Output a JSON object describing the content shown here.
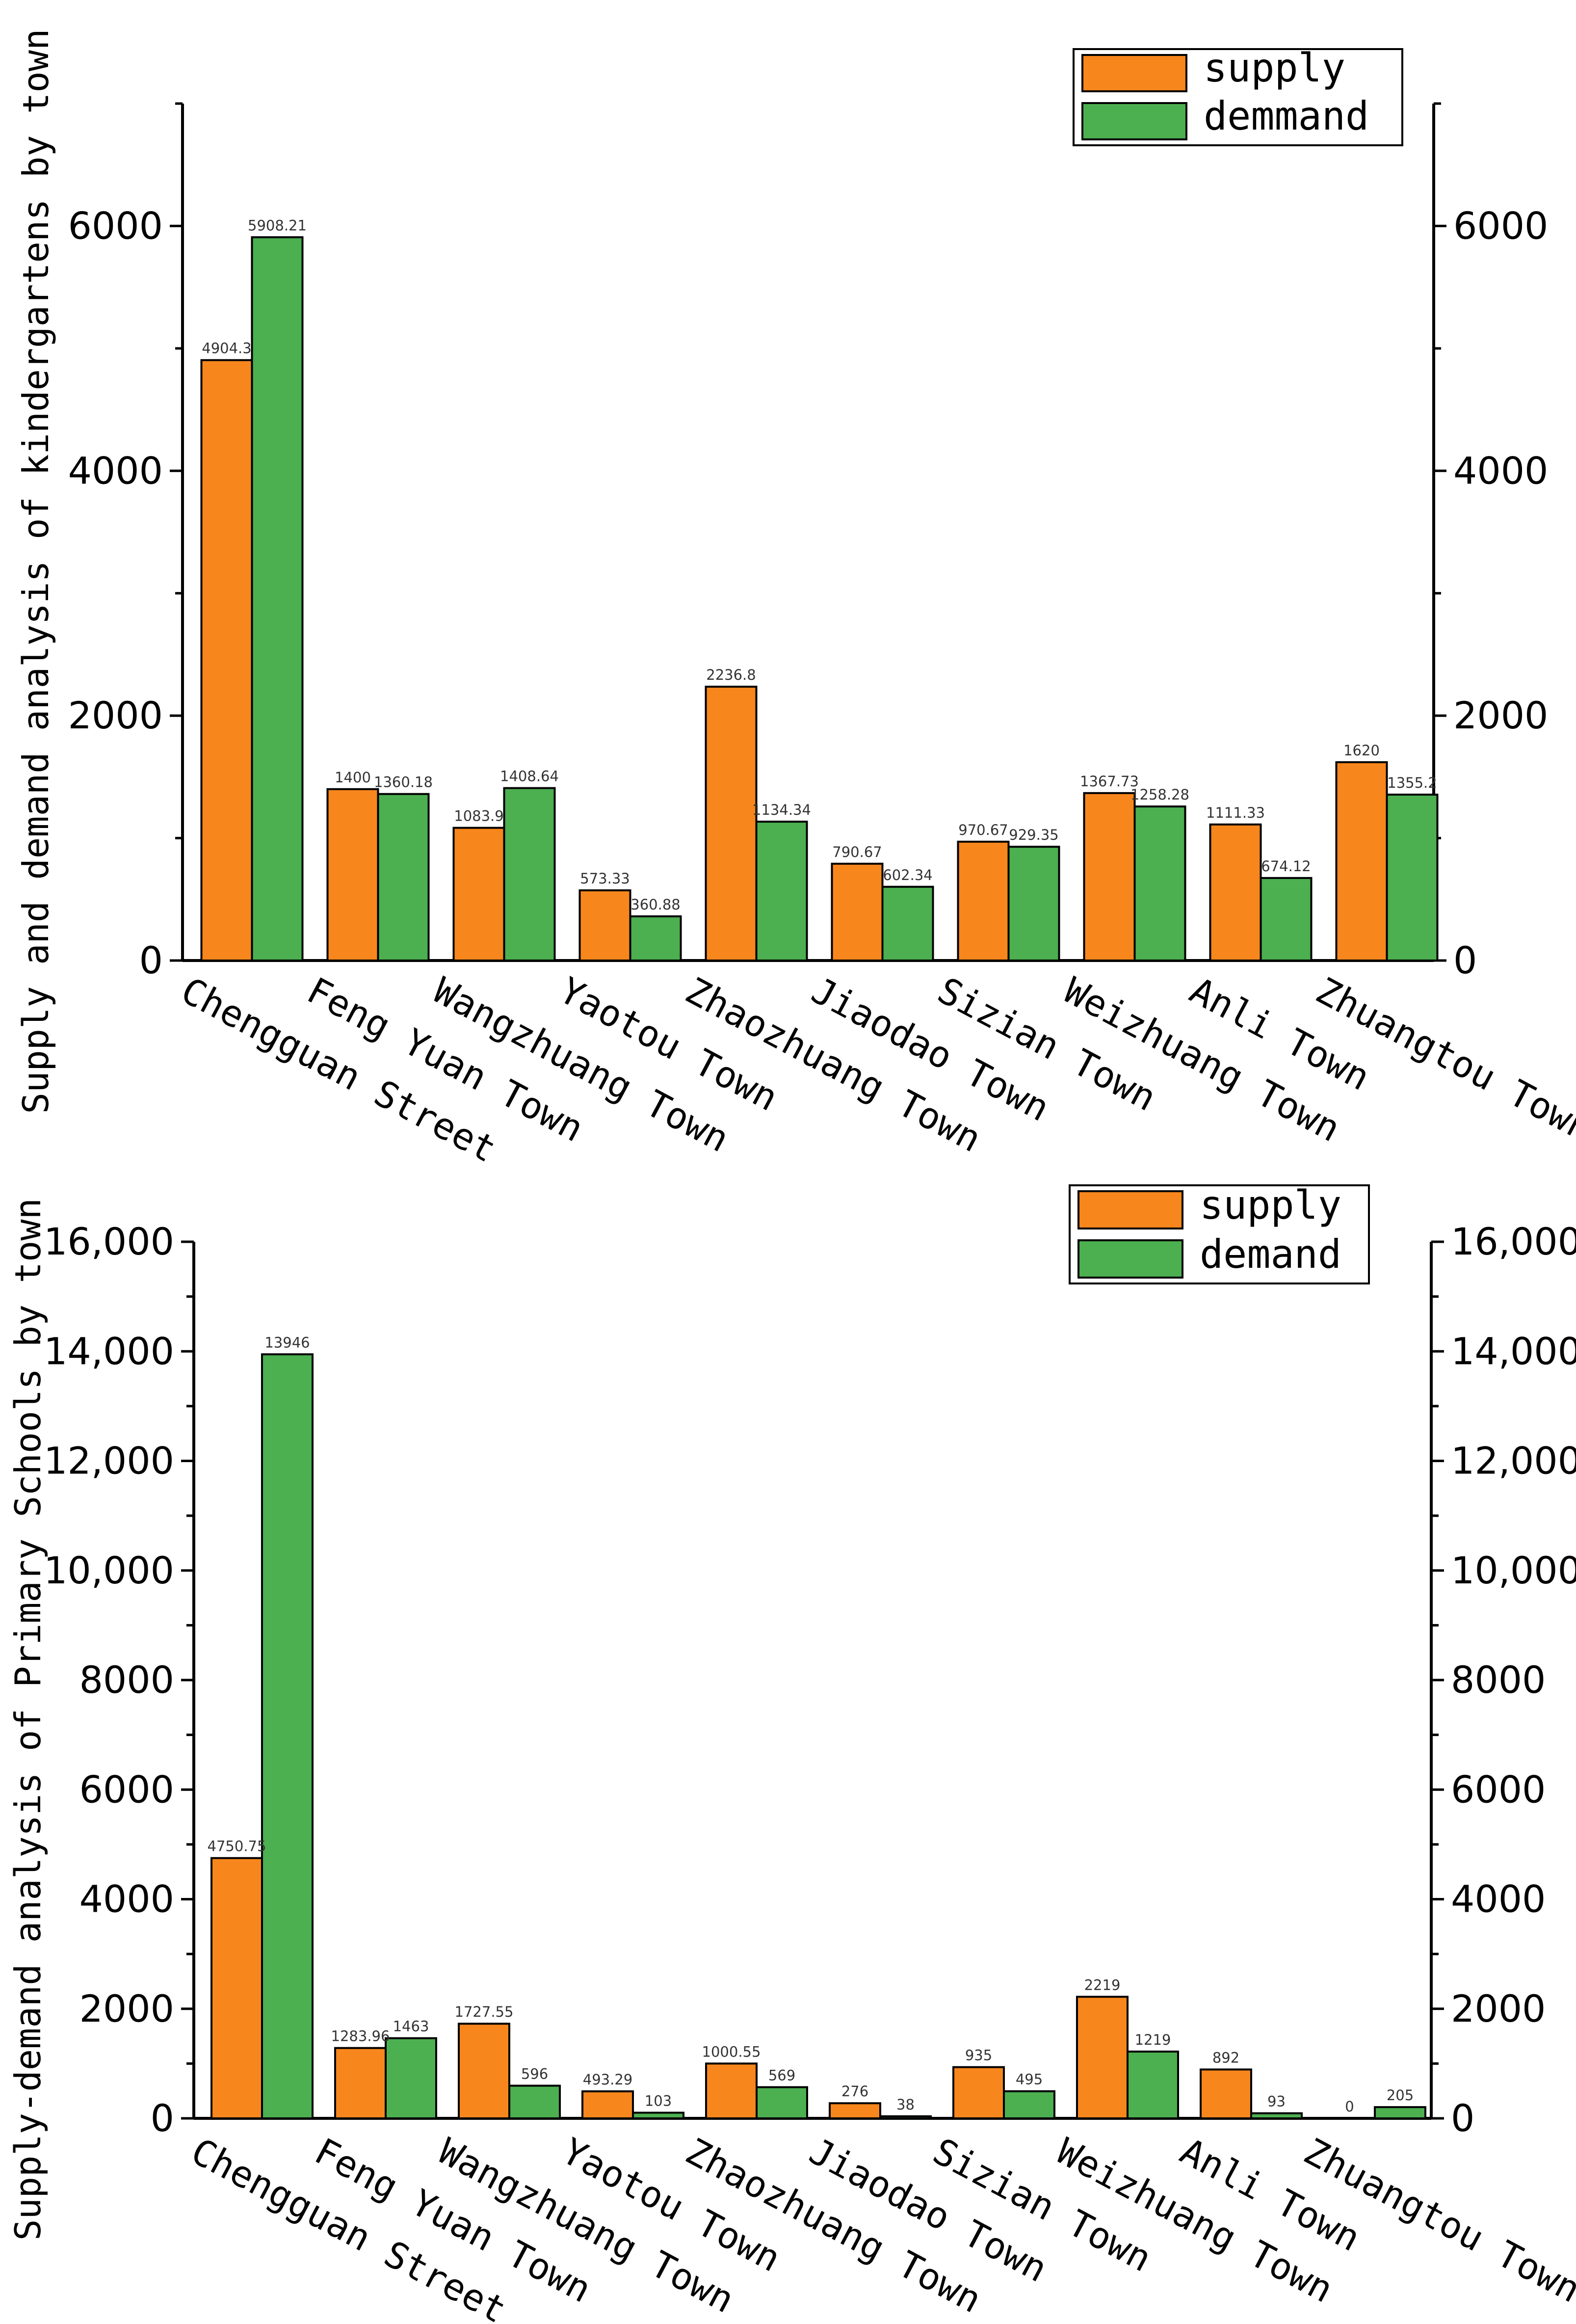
{
  "colors": {
    "supply": "#F7861C",
    "demand": "#4CAF50",
    "axis": "#000000"
  },
  "chart_data": [
    {
      "type": "bar",
      "ylabel": "Supply and demand analysis of kindergartens by town",
      "xlabel": "",
      "title": "",
      "ylim": [
        0,
        7000
      ],
      "yticks": [
        0,
        2000,
        4000,
        6000
      ],
      "ytick_labels": [
        "0",
        "2000",
        "4000",
        "6000"
      ],
      "legend_position": "top-right",
      "categories": [
        "Chengguan Street",
        "Feng Yuan Town",
        "Wangzhuang Town",
        "Yaotou Town",
        "Zhaozhuang Town",
        "Jiaodao Town",
        "Sizian Town",
        "Weizhuang Town",
        "Anli Town",
        "Zhuangtou Town"
      ],
      "series": [
        {
          "name": "supply",
          "values": [
            4904.3,
            1400,
            1083.9,
            573.33,
            2236.8,
            790.67,
            970.67,
            1367.73,
            1111.33,
            1620
          ],
          "labels": [
            "4904.3",
            "1400",
            "1083.9",
            "573.33",
            "2236.8",
            "790.67",
            "970.67",
            "1367.73",
            "1111.33",
            "1620"
          ]
        },
        {
          "name": "demmand",
          "values": [
            5908.21,
            1360.18,
            1408.64,
            360.88,
            1134.34,
            602.34,
            929.35,
            1258.28,
            674.12,
            1355.2
          ],
          "labels": [
            "5908.21",
            "1360.18",
            "1408.64",
            "360.88",
            "1134.34",
            "602.34",
            "929.35",
            "1258.28",
            "674.12",
            "1355.2"
          ]
        }
      ]
    },
    {
      "type": "bar",
      "ylabel": "Supply-demand analysis of Primary Schools by town",
      "xlabel": "",
      "title": "",
      "ylim": [
        0,
        16000
      ],
      "yticks": [
        0,
        2000,
        4000,
        6000,
        8000,
        10000,
        12000,
        14000,
        16000
      ],
      "ytick_labels": [
        "0",
        "2000",
        "4000",
        "6000",
        "8000",
        "10,000",
        "12,000",
        "14,000",
        "16,000"
      ],
      "legend_position": "top-right",
      "categories": [
        "Chengguan Street",
        "Feng Yuan Town",
        "Wangzhuang Town",
        "Yaotou Town",
        "Zhaozhuang Town",
        "Jiaodao Town",
        "Sizian Town",
        "Weizhuang Town",
        "Anli Town",
        "Zhuangtou Town"
      ],
      "series": [
        {
          "name": "supply",
          "values": [
            4750.75,
            1283.96,
            1727.55,
            493.29,
            1000.55,
            276,
            935,
            2219,
            892,
            0
          ],
          "labels": [
            "4750.75",
            "1283.96",
            "1727.55",
            "493.29",
            "1000.55",
            "276",
            "935",
            "2219",
            "892",
            "0"
          ]
        },
        {
          "name": "demand",
          "values": [
            13946,
            1463,
            596,
            103,
            569,
            38,
            495,
            1219,
            93,
            205
          ],
          "labels": [
            "13946",
            "1463",
            "596",
            "103",
            "569",
            "38",
            "495",
            "1219",
            "93",
            "205"
          ]
        }
      ]
    }
  ]
}
